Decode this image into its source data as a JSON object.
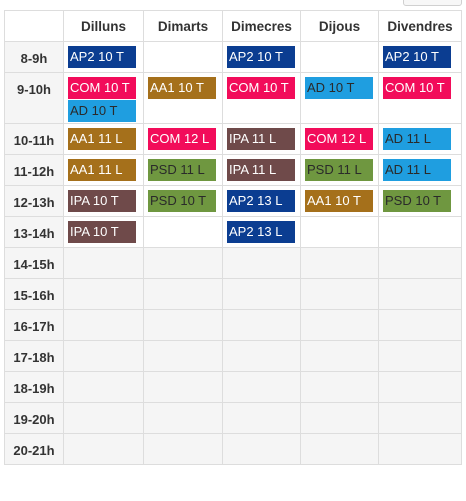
{
  "header": {
    "days": [
      "Dilluns",
      "Dimarts",
      "Dimecres",
      "Dijous",
      "Divendres"
    ]
  },
  "colors": {
    "AP2": "#0b3d91",
    "COM": "#f20c5a",
    "AD": "#1f9ee0",
    "AA1": "#a5701b",
    "IPA": "#6f4a4a",
    "PSD": "#6f9740"
  },
  "rows": [
    {
      "hour": "8-9h",
      "cells": [
        [
          {
            "label": "AP2 10 T",
            "code": "AP2"
          }
        ],
        [],
        [
          {
            "label": "AP2 10 T",
            "code": "AP2"
          }
        ],
        [],
        [
          {
            "label": "AP2 10 T",
            "code": "AP2"
          }
        ]
      ]
    },
    {
      "hour": "9-10h",
      "cells": [
        [
          {
            "label": "COM 10 T",
            "code": "COM"
          },
          {
            "label": "AD 10 T",
            "code": "AD"
          }
        ],
        [
          {
            "label": "AA1 10 T",
            "code": "AA1"
          }
        ],
        [
          {
            "label": "COM 10 T",
            "code": "COM"
          }
        ],
        [
          {
            "label": "AD 10 T",
            "code": "AD"
          }
        ],
        [
          {
            "label": "COM 10 T",
            "code": "COM"
          }
        ]
      ]
    },
    {
      "hour": "10-11h",
      "cells": [
        [
          {
            "label": "AA1 11 L",
            "code": "AA1"
          }
        ],
        [
          {
            "label": "COM 12 L",
            "code": "COM"
          }
        ],
        [
          {
            "label": "IPA 11 L",
            "code": "IPA"
          }
        ],
        [
          {
            "label": "COM 12 L",
            "code": "COM"
          }
        ],
        [
          {
            "label": "AD 11 L",
            "code": "AD"
          }
        ]
      ]
    },
    {
      "hour": "11-12h",
      "cells": [
        [
          {
            "label": "AA1 11 L",
            "code": "AA1"
          }
        ],
        [
          {
            "label": "PSD 11 L",
            "code": "PSD"
          }
        ],
        [
          {
            "label": "IPA 11 L",
            "code": "IPA"
          }
        ],
        [
          {
            "label": "PSD 11 L",
            "code": "PSD"
          }
        ],
        [
          {
            "label": "AD 11 L",
            "code": "AD"
          }
        ]
      ]
    },
    {
      "hour": "12-13h",
      "cells": [
        [
          {
            "label": "IPA 10 T",
            "code": "IPA"
          }
        ],
        [
          {
            "label": "PSD 10 T",
            "code": "PSD"
          }
        ],
        [
          {
            "label": "AP2 13 L",
            "code": "AP2"
          }
        ],
        [
          {
            "label": "AA1 10 T",
            "code": "AA1"
          }
        ],
        [
          {
            "label": "PSD 10 T",
            "code": "PSD"
          }
        ]
      ]
    },
    {
      "hour": "13-14h",
      "cells": [
        [
          {
            "label": "IPA 10 T",
            "code": "IPA"
          }
        ],
        [],
        [
          {
            "label": "AP2 13 L",
            "code": "AP2"
          }
        ],
        [],
        []
      ]
    },
    {
      "hour": "14-15h",
      "cells": [
        [],
        [],
        [],
        [],
        []
      ]
    },
    {
      "hour": "15-16h",
      "cells": [
        [],
        [],
        [],
        [],
        []
      ]
    },
    {
      "hour": "16-17h",
      "cells": [
        [],
        [],
        [],
        [],
        []
      ]
    },
    {
      "hour": "17-18h",
      "cells": [
        [],
        [],
        [],
        [],
        []
      ]
    },
    {
      "hour": "18-19h",
      "cells": [
        [],
        [],
        [],
        [],
        []
      ]
    },
    {
      "hour": "19-20h",
      "cells": [
        [],
        [],
        [],
        [],
        []
      ]
    },
    {
      "hour": "20-21h",
      "cells": [
        [],
        [],
        [],
        [],
        []
      ]
    }
  ]
}
